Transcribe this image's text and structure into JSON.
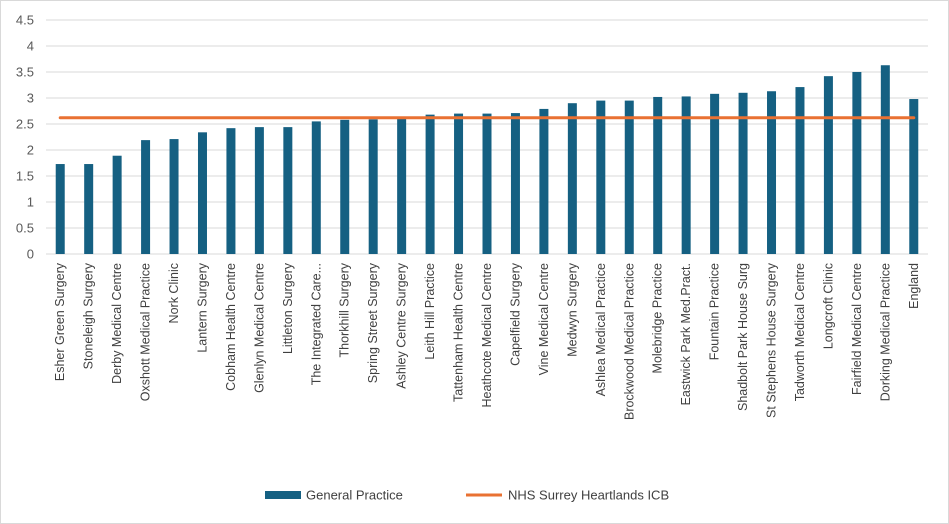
{
  "chart_data": {
    "type": "bar",
    "title": "",
    "xlabel": "",
    "ylabel": "",
    "ylim": [
      0,
      4.5
    ],
    "yticks": [
      "0",
      "0.5",
      "1",
      "1.5",
      "2",
      "2.5",
      "3",
      "3.5",
      "4",
      "4.5"
    ],
    "grid": true,
    "legend_position": "bottom",
    "categories": [
      "Esher Green Surgery",
      "Stoneleigh Surgery",
      "Derby Medical Centre",
      "Oxshott Medical Practice",
      "Nork Clinic",
      "Lantern Surgery",
      "Cobham Health Centre",
      "Glenlyn Medical Centre",
      "Littleton Surgery",
      "The Integrated Care...",
      "Thorkhill Surgery",
      "Spring Street Surgery",
      "Ashley Centre Surgery",
      "Leith Hill Practice",
      "Tattenham Health Centre",
      "Heathcote Medical Centre",
      "Capelfield Surgery",
      "Vine Medical Centre",
      "Medwyn Surgery",
      "Ashlea Medical Practice",
      "Brockwood Medical Practice",
      "Molebridge Practice",
      "Eastwick Park Med.Pract.",
      "Fountain Practice",
      "Shadbolt Park House Surg",
      "St Stephens House Surgery",
      "Tadworth Medical Centre",
      "Longcroft Clinic",
      "Fairfield Medical Centre",
      "Dorking Medical Practice",
      "England"
    ],
    "series": [
      {
        "name": "General Practice",
        "type": "bar",
        "color": "#156082",
        "values": [
          1.73,
          1.73,
          1.89,
          2.19,
          2.21,
          2.34,
          2.42,
          2.44,
          2.44,
          2.55,
          2.58,
          2.59,
          2.6,
          2.68,
          2.7,
          2.7,
          2.71,
          2.79,
          2.9,
          2.95,
          2.95,
          3.02,
          3.03,
          3.08,
          3.1,
          3.13,
          3.21,
          3.42,
          3.5,
          3.63,
          2.98
        ]
      },
      {
        "name": "NHS Surrey Heartlands ICB",
        "type": "line",
        "color": "#E97132",
        "value": 2.62
      }
    ]
  }
}
